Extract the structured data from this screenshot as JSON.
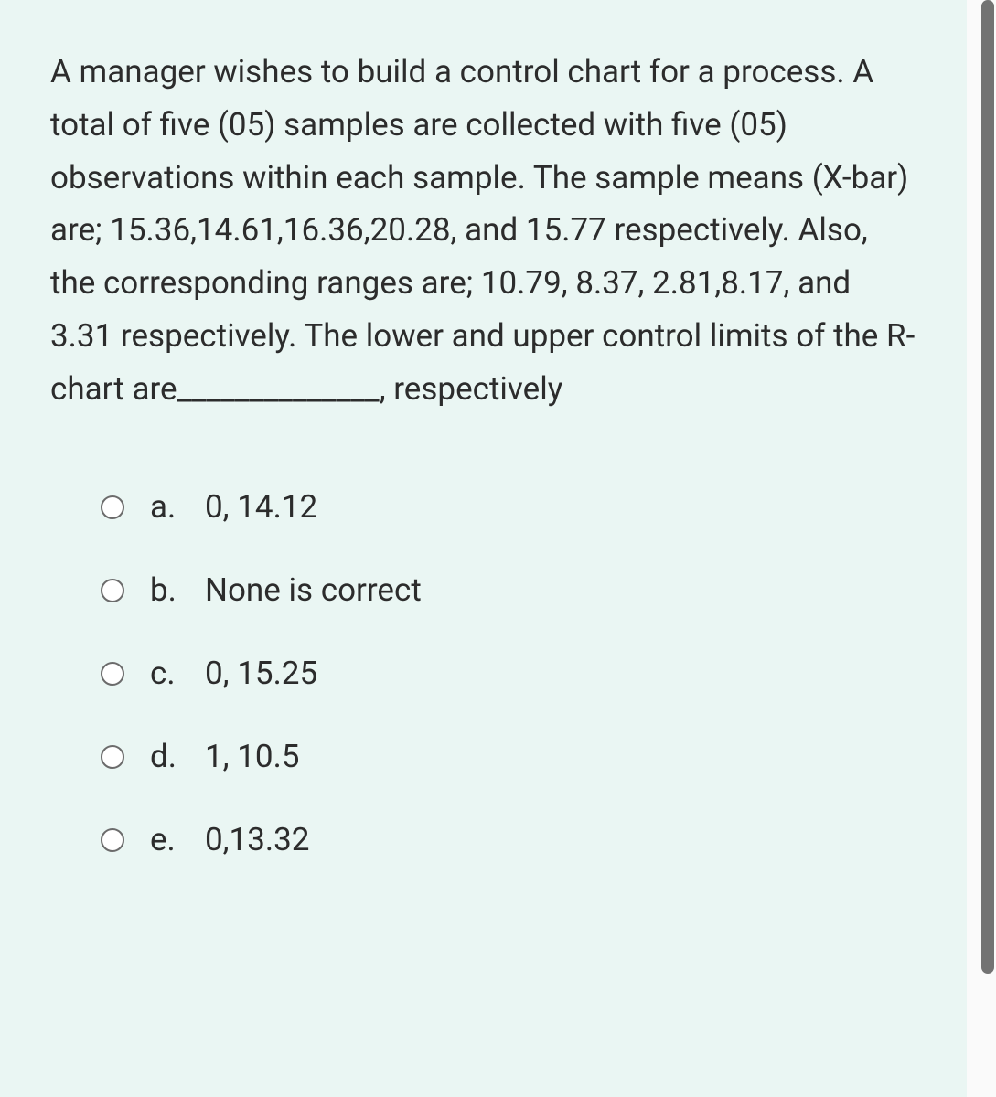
{
  "question": {
    "text": "A manager wishes to build a control chart for a process. A total of five (05) samples are collected with five (05) observations within each sample. The sample means (X-bar) are; 15.36,14.61,16.36,20.28, and 15.77 respectively. Also, the corresponding ranges are; 10.79, 8.37, 2.81,8.17, and 3.31 respectively. The lower and upper control limits of the R-chart are______________, respectively"
  },
  "options": [
    {
      "letter": "a.",
      "text": "0, 14.12"
    },
    {
      "letter": "b.",
      "text": "None is correct"
    },
    {
      "letter": "c.",
      "text": "0, 15.25"
    },
    {
      "letter": "d.",
      "text": "1, 10.5"
    },
    {
      "letter": "e.",
      "text": "0,13.32"
    }
  ],
  "colors": {
    "panel_bg": "#eaf6f3",
    "text": "#2c2c2c",
    "radio_border": "#6b6b6b",
    "scrollbar_thumb": "#737373",
    "scrollbar_track": "#fafafa"
  },
  "typography": {
    "font_size": 35,
    "line_height": 1.65
  }
}
